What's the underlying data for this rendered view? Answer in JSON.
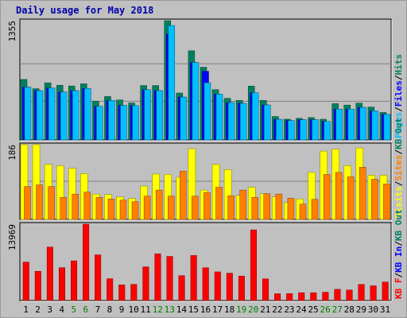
{
  "chart_data": {
    "type": "bar",
    "title": "Daily usage for May 2018",
    "categories": [
      "1",
      "2",
      "3",
      "4",
      "5",
      "6",
      "7",
      "8",
      "9",
      "10",
      "11",
      "12",
      "13",
      "14",
      "15",
      "16",
      "17",
      "18",
      "19",
      "20",
      "21",
      "22",
      "23",
      "24",
      "25",
      "26",
      "27",
      "28",
      "29",
      "30",
      "31"
    ],
    "weekend_days": [
      "5",
      "6",
      "12",
      "13",
      "19",
      "20",
      "26",
      "27"
    ],
    "colors": {
      "title": "#0000aa",
      "weekday_label": "#000000",
      "weekend_label": "#008000",
      "plot_bg": "#c0c0c0",
      "grid": "#808080",
      "hits": "#008060",
      "files": "#0000ff",
      "pages": "#00c0ff",
      "visits": "#ffff00",
      "sites": "#ff8000",
      "kbytes": "#ff0000"
    },
    "panels": [
      {
        "id": "hits-files-pages",
        "max_label": "1355",
        "ymax": 1355,
        "legend": [
          {
            "text": "Pages",
            "color": "#00c0ff"
          },
          {
            "text": "/",
            "color": "#000000"
          },
          {
            "text": "Files",
            "color": "#0000ff"
          },
          {
            "text": "/",
            "color": "#000000"
          },
          {
            "text": "Hits",
            "color": "#008060"
          }
        ],
        "series": [
          {
            "name": "Hits",
            "values": [
              687,
              582,
              649,
              621,
              613,
              638,
              441,
              493,
              454,
              420,
              618,
              618,
              1355,
              533,
              1013,
              826,
              571,
              473,
              449,
              612,
              449,
              266,
              236,
              245,
              254,
              235,
              412,
              396,
              418,
              373,
              312
            ]
          },
          {
            "name": "Files",
            "values": [
              600,
              560,
              590,
              545,
              560,
              585,
              381,
              448,
              393,
              390,
              570,
              560,
              1200,
              487,
              880,
              780,
              520,
              424,
              415,
              535,
              397,
              234,
              220,
              230,
              230,
              210,
              350,
              350,
              370,
              330,
              290
            ]
          },
          {
            "name": "Pages",
            "values": [
              600,
              560,
              590,
              545,
              560,
              585,
              381,
              448,
              393,
              390,
              570,
              560,
              1300,
              487,
              880,
              650,
              520,
              424,
              415,
              535,
              397,
              234,
              220,
              230,
              230,
              210,
              350,
              350,
              370,
              330,
              290
            ]
          }
        ]
      },
      {
        "id": "visits-sites",
        "max_label": "186",
        "ymax": 186,
        "legend": [
          {
            "text": "Visits",
            "color": "#ffff00"
          },
          {
            "text": "/",
            "color": "#000000"
          },
          {
            "text": "Sites",
            "color": "#ff8000"
          },
          {
            "text": "/",
            "color": "#000000"
          },
          {
            "text": "KB Out",
            "color": "#008060"
          }
        ],
        "series": [
          {
            "name": "Visits",
            "values": [
              186,
              186,
              137,
              134,
              127,
              114,
              63,
              62,
              56,
              52,
              83,
              113,
              112,
              105,
              176,
              73,
              137,
              124,
              60,
              80,
              64,
              56,
              42,
              51,
              117,
              170,
              175,
              134,
              178,
              110,
              110
            ]
          },
          {
            "name": "Sites",
            "values": [
              82,
              86,
              82,
              55,
              63,
              68,
              55,
              51,
              48,
              44,
              58,
              73,
              58,
              120,
              58,
              67,
              80,
              59,
              73,
              55,
              64,
              63,
              53,
              38,
              50,
              112,
              117,
              106,
              130,
              100,
              88
            ]
          }
        ]
      },
      {
        "id": "kbytes",
        "max_label": "13969",
        "ymax": 13969,
        "legend": [
          {
            "text": "KB F",
            "color": "#ff0000"
          },
          {
            "text": "/",
            "color": "#000000"
          },
          {
            "text": "KB In",
            "color": "#0000ff"
          },
          {
            "text": "/",
            "color": "#000000"
          },
          {
            "text": "KB Out",
            "color": "#008060"
          }
        ],
        "series": [
          {
            "name": "KBytes",
            "values": [
              7037,
              5355,
              9790,
              6012,
              7263,
              13969,
              8351,
              3993,
              2850,
              2953,
              6154,
              8540,
              8070,
              4550,
              8241,
              5990,
              5243,
              5000,
              4462,
              12935,
              3955,
              1240,
              1265,
              1430,
              1430,
              1520,
              2050,
              1920,
              2940,
              2690,
              3380
            ]
          }
        ]
      }
    ]
  }
}
